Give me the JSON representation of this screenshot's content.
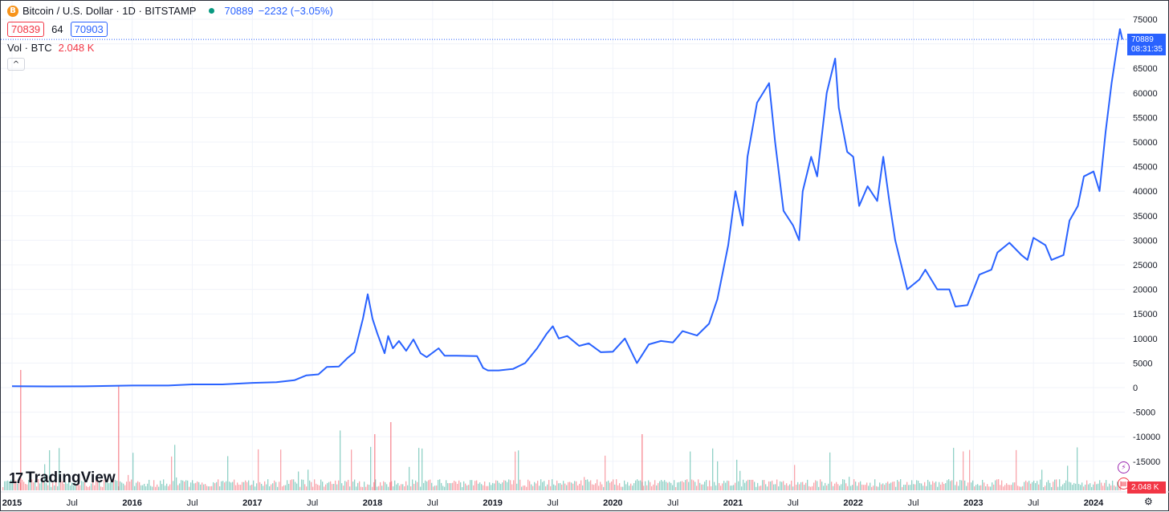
{
  "header": {
    "coin_icon": "B",
    "symbol": "Bitcoin / U.S. Dollar · 1D · BITSTAMP",
    "last_price": "70889",
    "change": "−2232 (−3.05%)",
    "bid": "70839",
    "spread": "64",
    "ask": "70903",
    "volume_label": "Vol · BTC",
    "volume_value": "2.048 K",
    "collapse_icon": "^"
  },
  "price_tag": {
    "price": "70889",
    "countdown": "08:31:35"
  },
  "volume_tag": "2.048 K",
  "logo": {
    "mark": "17",
    "text": "TradingView"
  },
  "colors": {
    "line": "#2962ff",
    "up": "#089981",
    "down": "#f23645",
    "grid": "#f0f3fa",
    "text": "#131722"
  },
  "chart_data": {
    "type": "line",
    "title": "Bitcoin / U.S. Dollar · 1D · BITSTAMP",
    "xlabel": "",
    "ylabel": "",
    "ylim": [
      -17500,
      77000
    ],
    "xlim": [
      2015.0,
      2024.35
    ],
    "yticks": [
      75000,
      70000,
      65000,
      60000,
      55000,
      50000,
      45000,
      40000,
      35000,
      30000,
      25000,
      20000,
      15000,
      10000,
      5000,
      0,
      -5000,
      -10000,
      -15000
    ],
    "xticks": [
      {
        "label": "2015",
        "x": 2015.0
      },
      {
        "label": "Jul",
        "x": 2015.5
      },
      {
        "label": "2016",
        "x": 2016.0
      },
      {
        "label": "Jul",
        "x": 2016.5
      },
      {
        "label": "2017",
        "x": 2017.0
      },
      {
        "label": "Jul",
        "x": 2017.5
      },
      {
        "label": "2018",
        "x": 2018.0
      },
      {
        "label": "Jul",
        "x": 2018.5
      },
      {
        "label": "2019",
        "x": 2019.0
      },
      {
        "label": "Jul",
        "x": 2019.5
      },
      {
        "label": "2020",
        "x": 2020.0
      },
      {
        "label": "Jul",
        "x": 2020.5
      },
      {
        "label": "2021",
        "x": 2021.0
      },
      {
        "label": "Jul",
        "x": 2021.5
      },
      {
        "label": "2022",
        "x": 2022.0
      },
      {
        "label": "Jul",
        "x": 2022.5
      },
      {
        "label": "2023",
        "x": 2023.0
      },
      {
        "label": "Jul",
        "x": 2023.5
      },
      {
        "label": "2024",
        "x": 2024.0
      }
    ],
    "grid": true,
    "series": [
      {
        "values": [
          [
            2015.0,
            300
          ],
          [
            2015.3,
            240
          ],
          [
            2015.6,
            260
          ],
          [
            2015.85,
            380
          ],
          [
            2016.0,
            430
          ],
          [
            2016.3,
            420
          ],
          [
            2016.5,
            650
          ],
          [
            2016.75,
            650
          ],
          [
            2017.0,
            960
          ],
          [
            2017.2,
            1100
          ],
          [
            2017.35,
            1500
          ],
          [
            2017.45,
            2500
          ],
          [
            2017.55,
            2700
          ],
          [
            2017.62,
            4200
          ],
          [
            2017.72,
            4300
          ],
          [
            2017.79,
            6000
          ],
          [
            2017.85,
            7200
          ],
          [
            2017.92,
            14000
          ],
          [
            2017.96,
            19000
          ],
          [
            2018.0,
            14000
          ],
          [
            2018.04,
            11000
          ],
          [
            2018.1,
            7000
          ],
          [
            2018.13,
            10500
          ],
          [
            2018.17,
            8000
          ],
          [
            2018.22,
            9500
          ],
          [
            2018.28,
            7500
          ],
          [
            2018.34,
            9800
          ],
          [
            2018.4,
            7000
          ],
          [
            2018.45,
            6200
          ],
          [
            2018.55,
            8000
          ],
          [
            2018.6,
            6500
          ],
          [
            2018.7,
            6500
          ],
          [
            2018.87,
            6400
          ],
          [
            2018.92,
            4000
          ],
          [
            2018.96,
            3500
          ],
          [
            2019.05,
            3500
          ],
          [
            2019.17,
            3800
          ],
          [
            2019.27,
            5000
          ],
          [
            2019.37,
            8000
          ],
          [
            2019.45,
            11000
          ],
          [
            2019.5,
            12500
          ],
          [
            2019.55,
            10000
          ],
          [
            2019.62,
            10500
          ],
          [
            2019.72,
            8500
          ],
          [
            2019.8,
            9000
          ],
          [
            2019.9,
            7200
          ],
          [
            2020.0,
            7300
          ],
          [
            2020.1,
            10000
          ],
          [
            2020.2,
            5000
          ],
          [
            2020.3,
            8800
          ],
          [
            2020.4,
            9500
          ],
          [
            2020.5,
            9200
          ],
          [
            2020.58,
            11500
          ],
          [
            2020.7,
            10600
          ],
          [
            2020.8,
            13000
          ],
          [
            2020.87,
            18000
          ],
          [
            2020.96,
            29000
          ],
          [
            2021.02,
            40000
          ],
          [
            2021.08,
            33000
          ],
          [
            2021.12,
            47000
          ],
          [
            2021.2,
            58000
          ],
          [
            2021.3,
            62000
          ],
          [
            2021.35,
            50000
          ],
          [
            2021.42,
            36000
          ],
          [
            2021.5,
            33000
          ],
          [
            2021.55,
            30000
          ],
          [
            2021.58,
            40000
          ],
          [
            2021.65,
            47000
          ],
          [
            2021.7,
            43000
          ],
          [
            2021.78,
            60000
          ],
          [
            2021.85,
            67000
          ],
          [
            2021.88,
            57000
          ],
          [
            2021.95,
            48000
          ],
          [
            2022.0,
            47000
          ],
          [
            2022.05,
            37000
          ],
          [
            2022.12,
            41000
          ],
          [
            2022.2,
            38000
          ],
          [
            2022.25,
            47000
          ],
          [
            2022.3,
            38000
          ],
          [
            2022.35,
            30000
          ],
          [
            2022.45,
            20000
          ],
          [
            2022.55,
            22000
          ],
          [
            2022.6,
            24000
          ],
          [
            2022.7,
            20000
          ],
          [
            2022.8,
            20000
          ],
          [
            2022.85,
            16500
          ],
          [
            2022.95,
            16800
          ],
          [
            2023.05,
            23000
          ],
          [
            2023.15,
            24000
          ],
          [
            2023.2,
            27500
          ],
          [
            2023.3,
            29500
          ],
          [
            2023.4,
            27000
          ],
          [
            2023.45,
            26000
          ],
          [
            2023.5,
            30500
          ],
          [
            2023.6,
            29000
          ],
          [
            2023.65,
            26000
          ],
          [
            2023.75,
            27000
          ],
          [
            2023.8,
            34000
          ],
          [
            2023.87,
            37000
          ],
          [
            2023.92,
            43000
          ],
          [
            2024.0,
            44000
          ],
          [
            2024.05,
            40000
          ],
          [
            2024.1,
            52000
          ],
          [
            2024.15,
            62000
          ],
          [
            2024.2,
            70000
          ],
          [
            2024.22,
            73000
          ],
          [
            2024.24,
            70889
          ]
        ]
      }
    ],
    "volume": {
      "label": "Vol · BTC",
      "last": "2.048 K"
    }
  }
}
